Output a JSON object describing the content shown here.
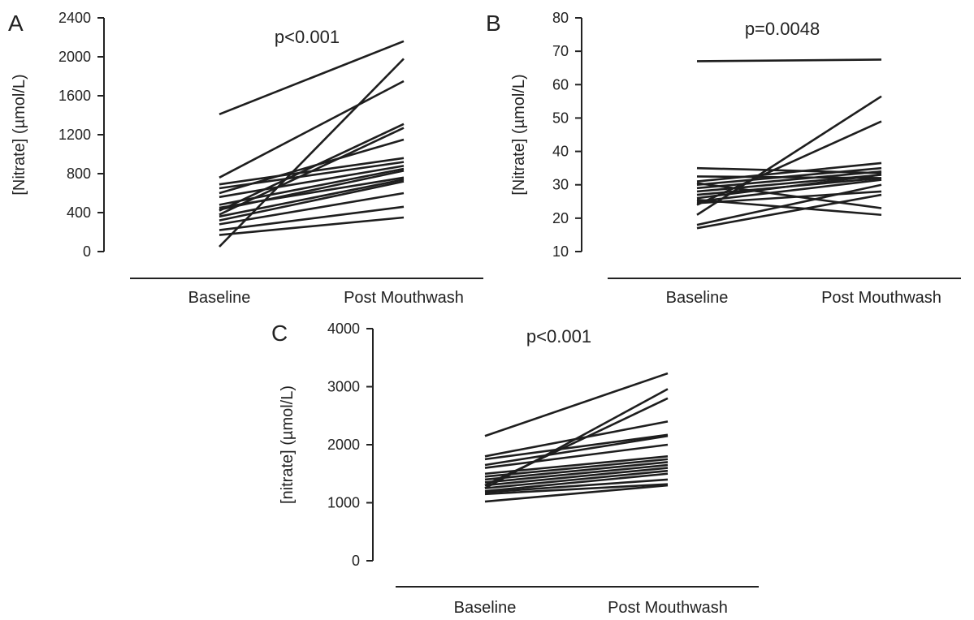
{
  "chart_data": [
    {
      "type": "line",
      "panel_label": "A",
      "annotation": "p<0.001",
      "ylabel": "[Nitrate] (µmol/L)",
      "xlabel": "",
      "categories": [
        "Baseline",
        "Post Mouthwash"
      ],
      "ylim": [
        0,
        2400
      ],
      "yticks": [
        0,
        400,
        800,
        1200,
        1600,
        2000,
        2400
      ],
      "grid": false,
      "series": [
        {
          "values": [
            1410,
            2160
          ]
        },
        {
          "values": [
            50,
            1980
          ]
        },
        {
          "values": [
            760,
            1750
          ]
        },
        {
          "values": [
            420,
            1310
          ]
        },
        {
          "values": [
            380,
            1270
          ]
        },
        {
          "values": [
            600,
            1150
          ]
        },
        {
          "values": [
            690,
            960
          ]
        },
        {
          "values": [
            650,
            920
          ]
        },
        {
          "values": [
            560,
            880
          ]
        },
        {
          "values": [
            480,
            850
          ]
        },
        {
          "values": [
            430,
            830
          ]
        },
        {
          "values": [
            450,
            760
          ]
        },
        {
          "values": [
            360,
            740
          ]
        },
        {
          "values": [
            320,
            720
          ]
        },
        {
          "values": [
            280,
            600
          ]
        },
        {
          "values": [
            220,
            460
          ]
        },
        {
          "values": [
            170,
            350
          ]
        }
      ]
    },
    {
      "type": "line",
      "panel_label": "B",
      "annotation": "p=0.0048",
      "ylabel": "[Nitrate] (µmol/L)",
      "xlabel": "",
      "categories": [
        "Baseline",
        "Post Mouthwash"
      ],
      "ylim": [
        10,
        80
      ],
      "yticks": [
        10,
        20,
        30,
        40,
        50,
        60,
        70,
        80
      ],
      "grid": false,
      "series": [
        {
          "values": [
            67,
            67.5
          ]
        },
        {
          "values": [
            21,
            56.5
          ]
        },
        {
          "values": [
            24,
            49
          ]
        },
        {
          "values": [
            35,
            33.5
          ]
        },
        {
          "values": [
            32.5,
            32
          ]
        },
        {
          "values": [
            31,
            36.5
          ]
        },
        {
          "values": [
            30,
            35
          ]
        },
        {
          "values": [
            29,
            34
          ]
        },
        {
          "values": [
            28,
            33
          ]
        },
        {
          "values": [
            27,
            32
          ]
        },
        {
          "values": [
            26,
            33
          ]
        },
        {
          "values": [
            25,
            31.5
          ]
        },
        {
          "values": [
            30.5,
            23
          ]
        },
        {
          "values": [
            25.5,
            21
          ]
        },
        {
          "values": [
            24.5,
            28
          ]
        },
        {
          "values": [
            18,
            30
          ]
        },
        {
          "values": [
            17,
            27
          ]
        }
      ]
    },
    {
      "type": "line",
      "panel_label": "C",
      "annotation": "p<0.001",
      "ylabel": "[nitrate] (µmol/L)",
      "xlabel": "",
      "categories": [
        "Baseline",
        "Post Mouthwash"
      ],
      "ylim": [
        0,
        4000
      ],
      "yticks": [
        0,
        1000,
        2000,
        3000,
        4000
      ],
      "grid": false,
      "series": [
        {
          "values": [
            2150,
            3230
          ]
        },
        {
          "values": [
            1250,
            2960
          ]
        },
        {
          "values": [
            1300,
            2800
          ]
        },
        {
          "values": [
            1800,
            2400
          ]
        },
        {
          "values": [
            1750,
            2170
          ]
        },
        {
          "values": [
            1650,
            2150
          ]
        },
        {
          "values": [
            1600,
            2000
          ]
        },
        {
          "values": [
            1500,
            1800
          ]
        },
        {
          "values": [
            1450,
            1750
          ]
        },
        {
          "values": [
            1400,
            1700
          ]
        },
        {
          "values": [
            1350,
            1650
          ]
        },
        {
          "values": [
            1300,
            1600
          ]
        },
        {
          "values": [
            1250,
            1550
          ]
        },
        {
          "values": [
            1200,
            1500
          ]
        },
        {
          "values": [
            1180,
            1400
          ]
        },
        {
          "values": [
            1150,
            1320
          ]
        },
        {
          "values": [
            1020,
            1300
          ]
        }
      ]
    }
  ]
}
